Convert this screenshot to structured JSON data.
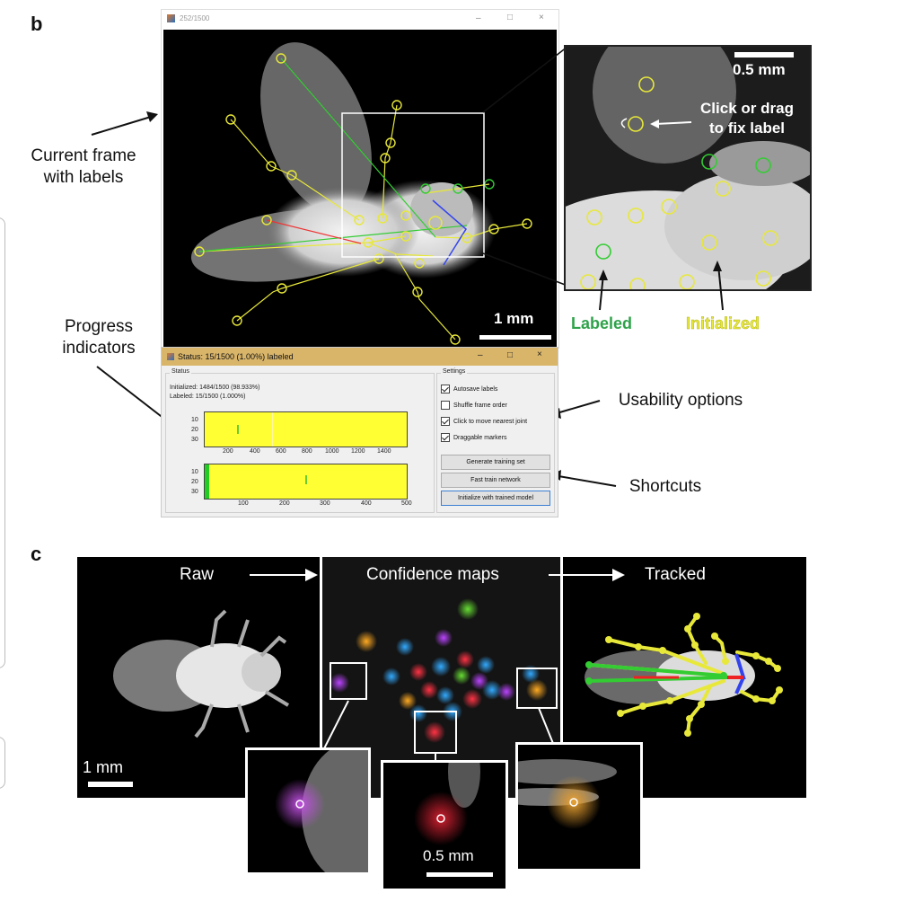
{
  "panel_b": {
    "letter": "b",
    "window_title": "252/1500",
    "window_controls": {
      "minimize": "–",
      "maximize": "□",
      "close": "×"
    },
    "scale_main": "1 mm",
    "scale_zoom": "0.5 mm",
    "zoom_callout": "Click or drag\nto fix label",
    "legend_labeled": "Labeled",
    "legend_initialized": "Initialized",
    "colors": {
      "labeled": "#33cc33",
      "initialized": "#e8e83a"
    }
  },
  "annotations": {
    "current_frame": "Current frame\nwith labels",
    "progress": "Progress\nindicators",
    "usability": "Usability options",
    "shortcuts": "Shortcuts"
  },
  "status_window": {
    "title": "Status: 15/1500 (1.00%) labeled",
    "status_group": "Status",
    "initialized_line": "Initialized: 1484/1500 (98.933%)",
    "labeled_line": "Labeled: 15/1500 (1.000%)",
    "chart1": {
      "yticks": [
        "10",
        "20",
        "30"
      ],
      "xticks": [
        "200",
        "400",
        "600",
        "800",
        "1000",
        "1200",
        "1400"
      ]
    },
    "chart2": {
      "yticks": [
        "10",
        "20",
        "30"
      ],
      "xticks": [
        "100",
        "200",
        "300",
        "400",
        "500"
      ]
    },
    "settings_group": "Settings",
    "checkboxes": [
      {
        "label": "Autosave labels",
        "checked": true
      },
      {
        "label": "Shuffle frame order",
        "checked": false
      },
      {
        "label": "Click to move nearest joint",
        "checked": true
      },
      {
        "label": "Draggable markers",
        "checked": true
      }
    ],
    "buttons": [
      "Generate training set",
      "Fast train network",
      "Initialize with trained model"
    ]
  },
  "panel_c": {
    "letter": "c",
    "raw": "Raw",
    "confidence": "Confidence maps",
    "tracked": "Tracked",
    "scale_main": "1 mm",
    "scale_zoom": "0.5 mm"
  }
}
